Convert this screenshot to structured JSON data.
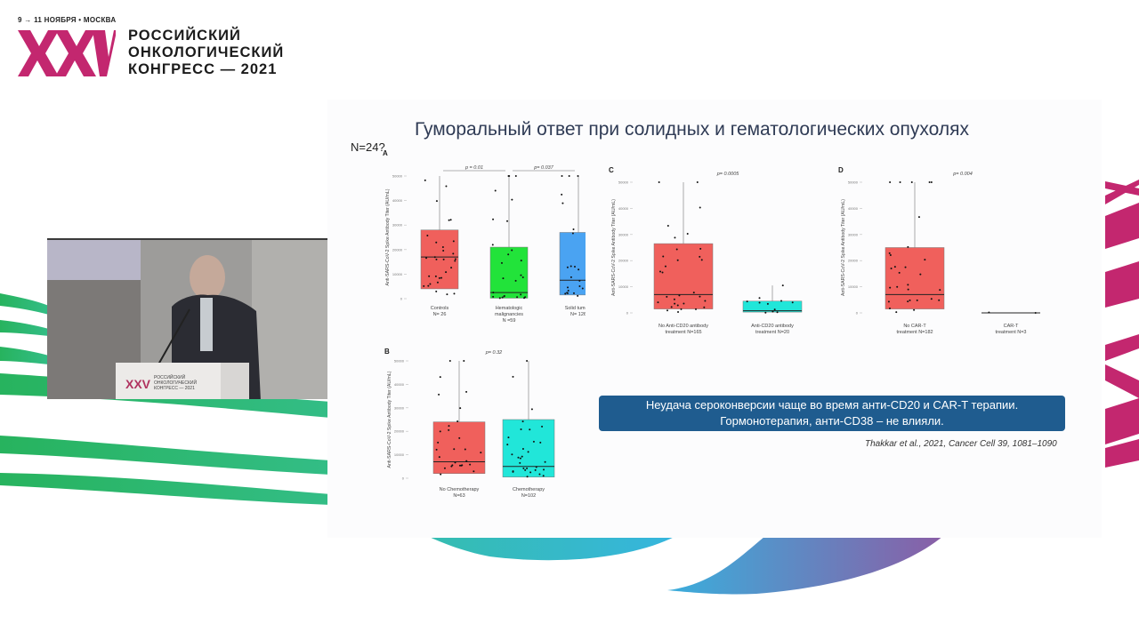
{
  "header": {
    "date_line": "9 → 11 НОЯБРЯ • МОСКВА",
    "logo_text": "XXV",
    "title_lines": [
      "РОССИЙСКИЙ",
      "ОНКОЛОГИЧЕСКИЙ",
      "КОНГРЕСС — 2021"
    ]
  },
  "colors": {
    "brand_magenta": "#c3276f",
    "deco_green": "#2db86a",
    "deco_teal": "#35b8c4",
    "deco_purple": "#7e69a8",
    "note_box": "#1f5c8f",
    "box_red": "#f0605c",
    "box_green": "#22e33a",
    "box_blue": "#4aa3f2",
    "box_cyan": "#21e6d9"
  },
  "video": {
    "podium_logo": "XXV",
    "podium_text": [
      "РОССИЙСКИЙ",
      "ОНКОЛОГИЧЕСКИЙ",
      "КОНГРЕСС — 2021"
    ]
  },
  "slide": {
    "title": "Гуморальный ответ при солидных и гематологических опухолях",
    "n_label": "N=24?",
    "note_lines": [
      "Неудача сероконверсии чаще во время анти-CD20 и CAR-T терапии.",
      "Гормонотерапия, анти-CD38 – не влияли."
    ],
    "citation": "Thakkar et al., 2021, Cancer Cell 39, 1081–1090"
  },
  "chart_data": [
    {
      "panel": "A",
      "type": "box",
      "ylabel": "Anti-SARS-CoV-2 Spike Antibody Titer (AU/mL)",
      "yticks": [
        0,
        10000,
        20000,
        30000,
        40000,
        50000
      ],
      "ylim": [
        0,
        50000
      ],
      "categories": [
        "Controls N= 26",
        "Hematologic malignancies N =59",
        "Solid tumors N= 126"
      ],
      "category_lines": [
        [
          "Controls",
          "N= 26"
        ],
        [
          "Hematologic",
          "malignancies",
          "N =59"
        ],
        [
          "Solid tumors",
          "N= 126"
        ]
      ],
      "colors": [
        "#f0605c",
        "#22e33a",
        "#4aa3f2"
      ],
      "series": [
        {
          "name": "Controls",
          "q1": 4000,
          "median": 17000,
          "q3": 28000,
          "whisker_low": 0,
          "whisker_high": 50000
        },
        {
          "name": "Hematologic malignancies",
          "q1": 200,
          "median": 2500,
          "q3": 21000,
          "whisker_low": 0,
          "whisker_high": 50000
        },
        {
          "name": "Solid tumors",
          "q1": 1500,
          "median": 7500,
          "q3": 27000,
          "whisker_low": 0,
          "whisker_high": 50000
        }
      ],
      "annotations": [
        {
          "text": "p = 0.01",
          "between": [
            0,
            1
          ]
        },
        {
          "text": "p= 0.037",
          "between": [
            1,
            2
          ]
        }
      ]
    },
    {
      "panel": "B",
      "type": "box",
      "ylabel": "Anti-SARS-CoV-2 Spike Antibody Titer (AU/mL)",
      "yticks": [
        0,
        10000,
        20000,
        30000,
        40000,
        50000
      ],
      "ylim": [
        0,
        50000
      ],
      "categories": [
        "No Chemotherapy N=63",
        "Chemotherapy N=102"
      ],
      "category_lines": [
        [
          "No Chemotherapy",
          "N=63"
        ],
        [
          "Chemotherapy",
          "N=102"
        ]
      ],
      "colors": [
        "#f0605c",
        "#21e6d9"
      ],
      "series": [
        {
          "name": "No Chemotherapy",
          "q1": 2000,
          "median": 7000,
          "q3": 24000,
          "whisker_low": 0,
          "whisker_high": 50000
        },
        {
          "name": "Chemotherapy",
          "q1": 500,
          "median": 5000,
          "q3": 25000,
          "whisker_low": 0,
          "whisker_high": 50000
        }
      ],
      "annotations": [
        {
          "text": "p= 0.32",
          "between": [
            0,
            1
          ]
        }
      ]
    },
    {
      "panel": "C",
      "type": "box",
      "ylabel": "Anti-SARS-CoV-2 Spike Antibody Titer (AU/mL)",
      "yticks": [
        0,
        10000,
        20000,
        30000,
        40000,
        50000
      ],
      "ylim": [
        0,
        50000
      ],
      "categories": [
        "No Anti-CD20 antibody treatment N=165",
        "Anti-CD20 antibody treatment N=20"
      ],
      "category_lines": [
        [
          "No Anti-CD20 antibody",
          "treatment N=165"
        ],
        [
          "Anti-CD20 antibody",
          "treatment N=20"
        ]
      ],
      "colors": [
        "#f0605c",
        "#21e6d9"
      ],
      "series": [
        {
          "name": "No Anti-CD20 antibody treatment",
          "q1": 1500,
          "median": 7000,
          "q3": 26500,
          "whisker_low": 0,
          "whisker_high": 50000
        },
        {
          "name": "Anti-CD20 antibody treatment",
          "q1": 300,
          "median": 800,
          "q3": 4500,
          "whisker_low": 0,
          "whisker_high": 10500
        }
      ],
      "annotations": [
        {
          "text": "p= 0.0005",
          "between": [
            0,
            1
          ]
        }
      ]
    },
    {
      "panel": "D",
      "type": "box",
      "ylabel": "Anti-SARS-CoV-2 Spike Antibody Titer (AU/mL)",
      "yticks": [
        0,
        10000,
        20000,
        30000,
        40000,
        50000
      ],
      "ylim": [
        0,
        50000
      ],
      "categories": [
        "No CAR-T treatment N=182",
        "CAR-T treatment N=3"
      ],
      "category_lines": [
        [
          "No CAR-T",
          "treatment N=182"
        ],
        [
          "CAR-T",
          "treatment N=3"
        ]
      ],
      "colors": [
        "#f0605c",
        "#21e6d9"
      ],
      "series": [
        {
          "name": "No CAR-T treatment",
          "q1": 1500,
          "median": 7000,
          "q3": 25000,
          "whisker_low": 0,
          "whisker_high": 50000
        },
        {
          "name": "CAR-T treatment",
          "q1": 0,
          "median": 0,
          "q3": 0,
          "whisker_low": 0,
          "whisker_high": 0
        }
      ],
      "annotations": [
        {
          "text": "p= 0.004",
          "between": [
            0,
            1
          ]
        }
      ]
    }
  ]
}
